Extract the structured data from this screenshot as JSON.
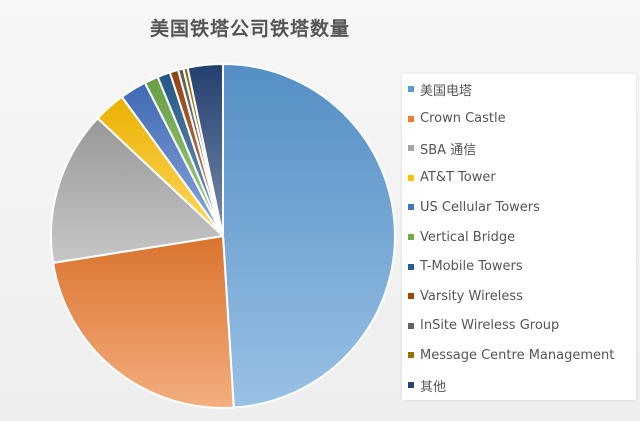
{
  "chart_data": {
    "type": "pie",
    "title": "美国铁塔公司铁塔数量",
    "legend_position": "right",
    "slices": [
      {
        "label": "美国电塔",
        "value": 49.0,
        "color": "#5b9bd5"
      },
      {
        "label": "Crown Castle",
        "value": 23.5,
        "color": "#ed7d31"
      },
      {
        "label": "SBA 通信",
        "value": 14.5,
        "color": "#a5a5a5"
      },
      {
        "label": "AT&T Tower",
        "value": 3.0,
        "color": "#ffc000"
      },
      {
        "label": "US Cellular Towers",
        "value": 2.5,
        "color": "#4472c4"
      },
      {
        "label": "Vertical Bridge",
        "value": 1.3,
        "color": "#70ad47"
      },
      {
        "label": "T-Mobile Towers",
        "value": 1.2,
        "color": "#255e91"
      },
      {
        "label": "Varsity Wireless",
        "value": 0.8,
        "color": "#9e480e"
      },
      {
        "label": "InSite Wireless Group",
        "value": 0.5,
        "color": "#636363"
      },
      {
        "label": "Message Centre Management",
        "value": 0.4,
        "color": "#997300"
      },
      {
        "label": "其他",
        "value": 3.3,
        "color": "#264478"
      }
    ]
  }
}
